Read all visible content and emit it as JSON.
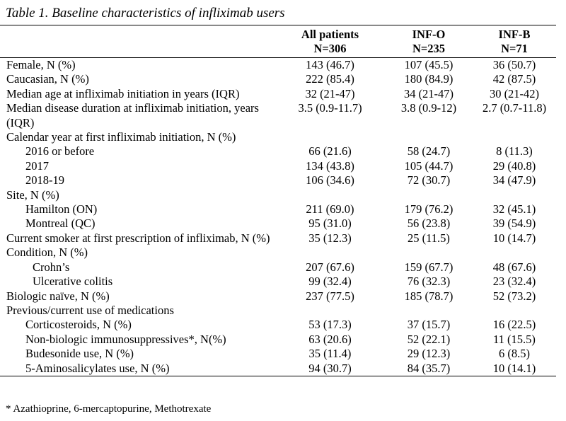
{
  "caption": "Table 1.  Baseline characteristics of infliximab users",
  "headers": [
    {
      "line1": "",
      "line2": ""
    },
    {
      "line1": "All patients",
      "line2": "N=306"
    },
    {
      "line1": "INF-O",
      "line2": "N=235"
    },
    {
      "line1": "INF-B",
      "line2": "N=71"
    }
  ],
  "rows": [
    {
      "label": "Female, N (%)",
      "indent": 0,
      "all": "143 (46.7)",
      "info": "107 (45.5)",
      "infb": "36 (50.7)"
    },
    {
      "label": "Caucasian, N (%)",
      "indent": 0,
      "all": "222 (85.4)",
      "info": "180 (84.9)",
      "infb": "42 (87.5)"
    },
    {
      "label": "Median age at infliximab initiation in years (IQR)",
      "indent": 0,
      "all": "32 (21-47)",
      "info": "34 (21-47)",
      "infb": "30 (21-42)"
    },
    {
      "label": "Median disease duration at infliximab initiation, years (IQR)",
      "indent": 0,
      "all": "3.5 (0.9-11.7)",
      "info": "3.8 (0.9-12)",
      "infb": "2.7 (0.7-11.8)"
    },
    {
      "label": "Calendar year at first infliximab initiation, N (%)",
      "indent": 0,
      "all": "",
      "info": "",
      "infb": ""
    },
    {
      "label": "2016 or before",
      "indent": 1,
      "all": "66 (21.6)",
      "info": "58 (24.7)",
      "infb": "8 (11.3)"
    },
    {
      "label": "2017",
      "indent": 1,
      "all": "134 (43.8)",
      "info": "105 (44.7)",
      "infb": "29 (40.8)"
    },
    {
      "label": "2018-19",
      "indent": 1,
      "all": "106 (34.6)",
      "info": "72 (30.7)",
      "infb": "34 (47.9)"
    },
    {
      "label": "Site, N (%)",
      "indent": 0,
      "all": "",
      "info": "",
      "infb": ""
    },
    {
      "label": "Hamilton (ON)",
      "indent": 1,
      "all": "211 (69.0)",
      "info": "179 (76.2)",
      "infb": "32 (45.1)"
    },
    {
      "label": "Montreal (QC)",
      "indent": 1,
      "all": "95 (31.0)",
      "info": "56 (23.8)",
      "infb": "39 (54.9)"
    },
    {
      "label": "Current smoker at first prescription of infliximab, N (%)",
      "indent": 0,
      "all": "35 (12.3)",
      "info": "25 (11.5)",
      "infb": "10 (14.7)"
    },
    {
      "label": "Condition, N (%)",
      "indent": 0,
      "all": "",
      "info": "",
      "infb": ""
    },
    {
      "label": "Crohn’s",
      "indent": 2,
      "all": "207 (67.6)",
      "info": "159 (67.7)",
      "infb": "48 (67.6)"
    },
    {
      "label": "Ulcerative colitis",
      "indent": 2,
      "all": "99 (32.4)",
      "info": "76 (32.3)",
      "infb": "23 (32.4)"
    },
    {
      "label": "Biologic naïve, N (%)",
      "indent": 0,
      "all": "237 (77.5)",
      "info": "185 (78.7)",
      "infb": "52 (73.2)"
    },
    {
      "label": "Previous/current use of medications",
      "indent": 0,
      "all": "",
      "info": "",
      "infb": ""
    },
    {
      "label": "Corticosteroids, N (%)",
      "indent": 1,
      "all": "53 (17.3)",
      "info": "37 (15.7)",
      "infb": "16 (22.5)"
    },
    {
      "label": "Non-biologic immunosuppressives*, N(%)",
      "indent": 1,
      "all": "63 (20.6)",
      "info": "52 (22.1)",
      "infb": "11 (15.5)"
    },
    {
      "label": "Budesonide use, N (%)",
      "indent": 1,
      "all": "35 (11.4)",
      "info": "29 (12.3)",
      "infb": "6 (8.5)"
    },
    {
      "label": "5-Aminosalicylates use, N (%)",
      "indent": 1,
      "all": "94 (30.7)",
      "info": "84 (35.7)",
      "infb": "10 (14.1)"
    }
  ],
  "footnote": "* Azathioprine, 6-mercaptopurine, Methotrexate"
}
